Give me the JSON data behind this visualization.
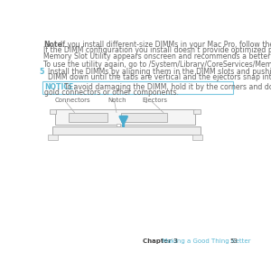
{
  "background_color": "#ffffff",
  "text_color": "#666666",
  "note_bold": "Note:",
  "note_line1_normal": "  If you install different-size DIMMs in your Mac Pro, follow the order in the table.",
  "note_line2": "If the DIMM configuration you install doesn’t provide optimized performance, the",
  "note_line3": "Memory Slot Utility appears onscreen and recommends a better configuration.",
  "utility_text": "To use the utility again, go to /System/Library/CoreServices/Memory Slot Utility.",
  "step_num": "5",
  "step_line1": "Install the DIMMs by aligning them in the DIMM slots and pushing both ends of the",
  "step_line2": "DIMM down until the tabs are vertical and the ejectors snap into place.",
  "notice_label": "NOTICE:",
  "notice_line1_normal": "  To avoid damaging the DIMM, hold it by the corners and don’t touch the",
  "notice_line2": "gold connectors or other components.",
  "notice_border_color": "#7cc8e0",
  "notice_label_color": "#5bb8d4",
  "connectors_label": "Connectors",
  "notch_label": "Notch",
  "ejectors_label": "Ejectors",
  "footer_chapter": "Chapter 3",
  "footer_title": "  Making a Good Thing Better",
  "footer_page": "53",
  "footer_chapter_color": "#444444",
  "footer_title_color": "#5bb8d4",
  "step_num_color": "#5bb8d4",
  "arrow_color": "#4aabcf",
  "dimm_fill": "#f5f5f5",
  "dimm_edge": "#aaaaaa",
  "slot_fill": "#eeeeee",
  "chip_fill": "#dddddd"
}
